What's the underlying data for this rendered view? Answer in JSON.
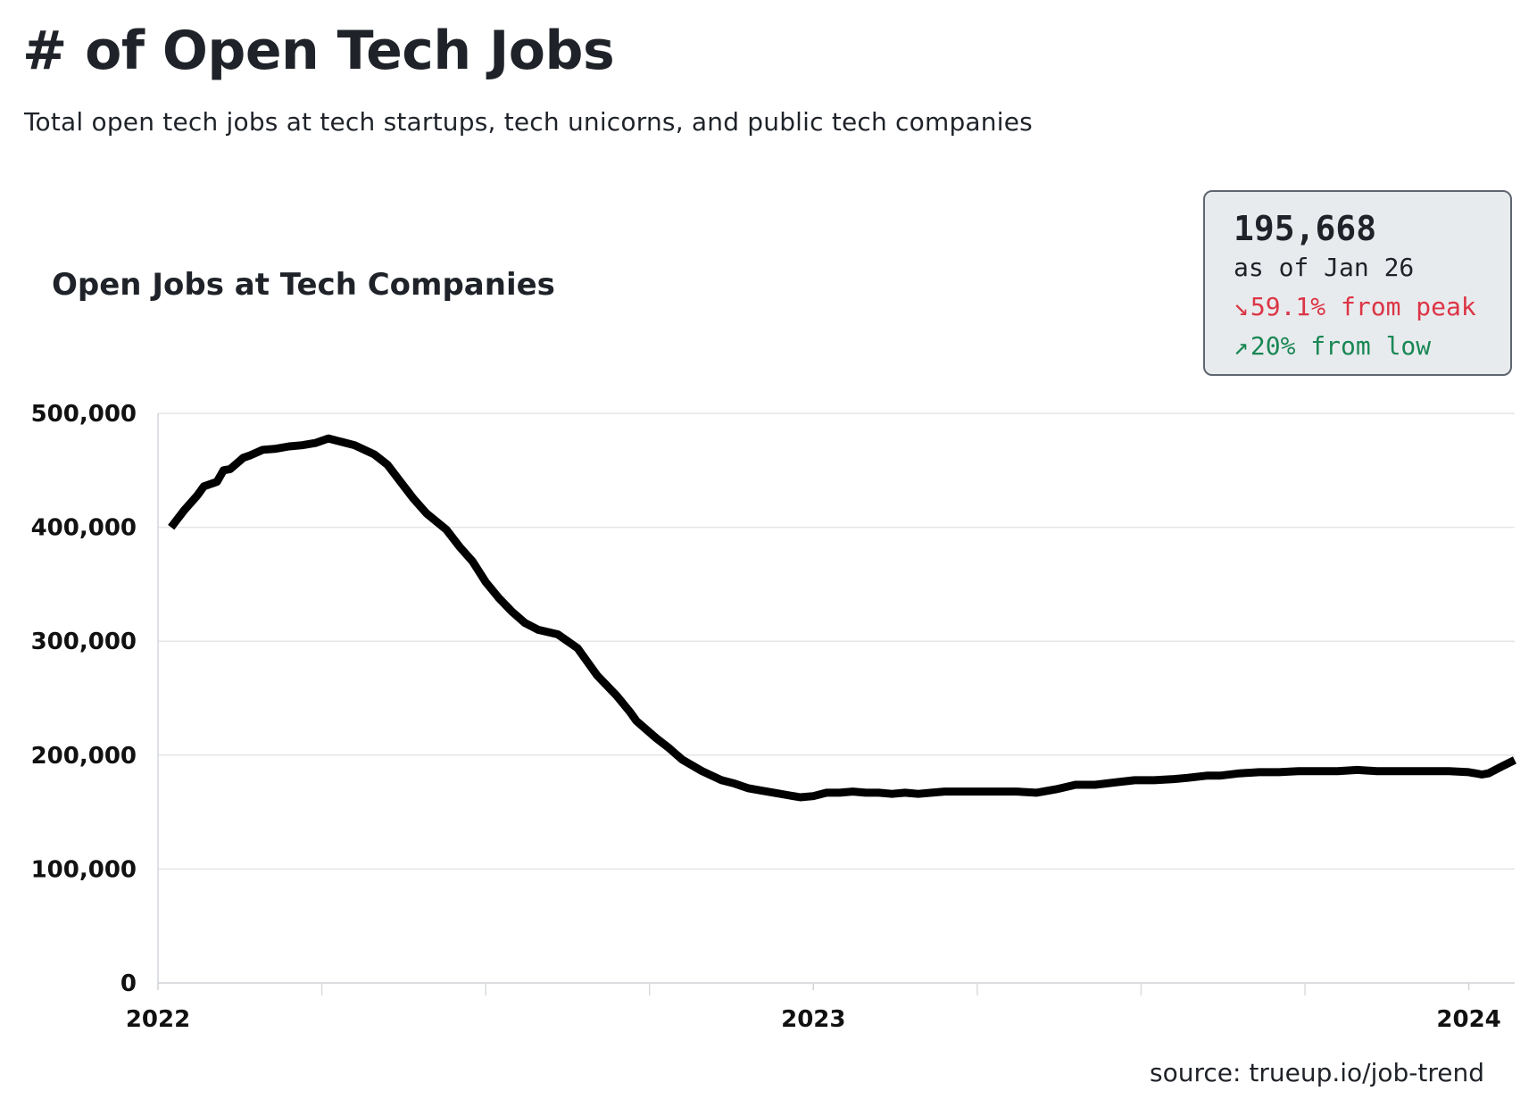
{
  "header": {
    "title": "# of Open Tech Jobs",
    "subtitle": "Total open tech jobs at tech startups, tech unicorns, and public tech companies"
  },
  "stats": {
    "value": "195,668",
    "as_of": "as of Jan 26",
    "peak_arrow": "↘",
    "peak_change": "59.1% from peak",
    "low_arrow": "↗",
    "low_change": "20% from low",
    "peak_color": "#dc3545",
    "low_color": "#198754"
  },
  "source": "source: trueup.io/job-trend",
  "chart_data": {
    "type": "line",
    "title": "Open Jobs at Tech Companies",
    "xlabel": "",
    "ylabel": "",
    "ylim": [
      0,
      500000
    ],
    "xlim": [
      2022.0,
      2024.07
    ],
    "grid": true,
    "line_color": "#000000",
    "y_ticks": [
      0,
      100000,
      200000,
      300000,
      400000,
      500000
    ],
    "y_tick_labels": [
      "0",
      "100,000",
      "200,000",
      "300,000",
      "400,000",
      "500,000"
    ],
    "x_tick_labels": [
      {
        "value": 2022,
        "label": "2022"
      },
      {
        "value": 2023,
        "label": "2023"
      },
      {
        "value": 2024,
        "label": "2024"
      }
    ],
    "x_minor_ticks": [
      2022.25,
      2022.5,
      2022.75,
      2023.25,
      2023.5,
      2023.75
    ],
    "series": [
      {
        "name": "Open Jobs",
        "x": [
          2022.02,
          2022.04,
          2022.06,
          2022.07,
          2022.09,
          2022.1,
          2022.11,
          2022.13,
          2022.14,
          2022.16,
          2022.18,
          2022.2,
          2022.22,
          2022.24,
          2022.26,
          2022.28,
          2022.3,
          2022.33,
          2022.35,
          2022.37,
          2022.39,
          2022.41,
          2022.44,
          2022.46,
          2022.48,
          2022.5,
          2022.52,
          2022.54,
          2022.56,
          2022.58,
          2022.61,
          2022.64,
          2022.67,
          2022.7,
          2022.72,
          2022.73,
          2022.76,
          2022.78,
          2022.8,
          2022.83,
          2022.86,
          2022.88,
          2022.9,
          2022.92,
          2022.94,
          2022.96,
          2022.98,
          2023.0,
          2023.02,
          2023.04,
          2023.06,
          2023.08,
          2023.1,
          2023.12,
          2023.14,
          2023.16,
          2023.18,
          2023.2,
          2023.22,
          2023.25,
          2023.28,
          2023.31,
          2023.34,
          2023.37,
          2023.4,
          2023.43,
          2023.46,
          2023.49,
          2023.52,
          2023.55,
          2023.57,
          2023.6,
          2023.62,
          2023.65,
          2023.68,
          2023.71,
          2023.74,
          2023.77,
          2023.8,
          2023.83,
          2023.86,
          2023.89,
          2023.92,
          2023.95,
          2023.97,
          2024.0,
          2024.02,
          2024.03,
          2024.05,
          2024.07
        ],
        "values": [
          400000,
          415000,
          428000,
          436000,
          440000,
          450000,
          451000,
          461000,
          463000,
          468000,
          469000,
          471000,
          472000,
          474000,
          478000,
          475000,
          472000,
          464000,
          455000,
          440000,
          425000,
          412000,
          398000,
          383000,
          370000,
          352000,
          338000,
          326000,
          316000,
          310000,
          306000,
          294000,
          270000,
          252000,
          238000,
          230000,
          215000,
          206000,
          196000,
          186000,
          178000,
          175000,
          171000,
          169000,
          167000,
          165000,
          163000,
          164000,
          167000,
          167000,
          168000,
          167000,
          167000,
          166000,
          167000,
          166000,
          167000,
          168000,
          168000,
          168000,
          168000,
          168000,
          167000,
          170000,
          174000,
          174000,
          176000,
          178000,
          178000,
          179000,
          180000,
          182000,
          182000,
          184000,
          185000,
          185000,
          186000,
          186000,
          186000,
          187000,
          186000,
          186000,
          186000,
          186000,
          186000,
          185000,
          183000,
          184000,
          190000,
          195668
        ]
      }
    ]
  }
}
